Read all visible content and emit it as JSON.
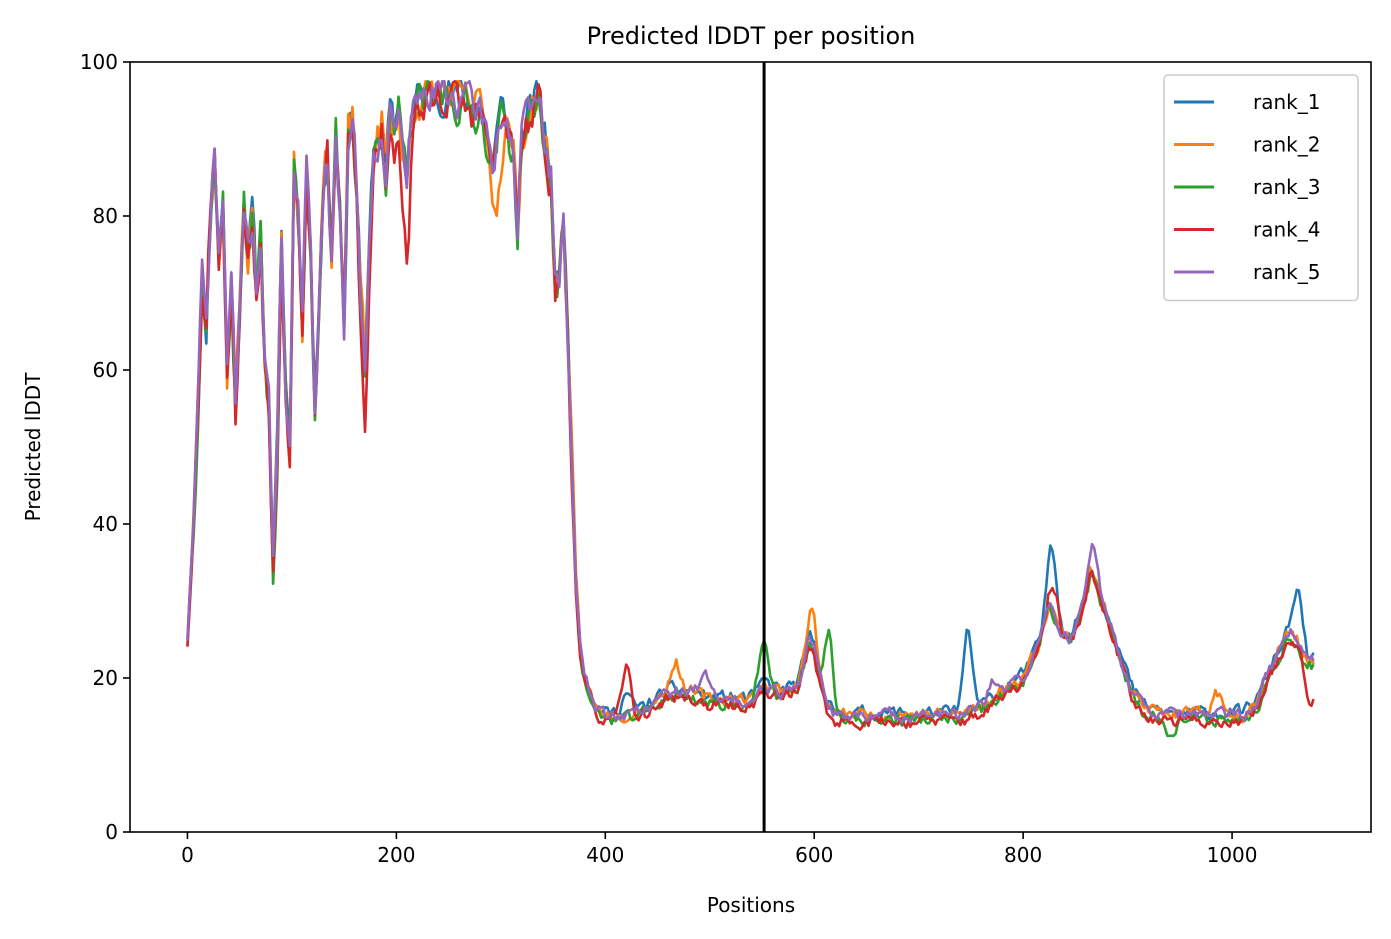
{
  "chart_data": {
    "type": "line",
    "title": "Predicted lDDT per position",
    "xlabel": "Positions",
    "ylabel": "Predicted lDDT",
    "xlim": [
      -55,
      1133
    ],
    "ylim": [
      0,
      100
    ],
    "xticks": [
      0,
      200,
      400,
      600,
      800,
      1000
    ],
    "yticks": [
      0,
      20,
      40,
      60,
      80,
      100
    ],
    "grid": false,
    "legend_position": "top-right",
    "vertical_line_x": 552,
    "vertical_line_color": "#000000",
    "base_profile": [
      [
        0,
        25
      ],
      [
        5,
        38
      ],
      [
        10,
        55
      ],
      [
        14,
        72
      ],
      [
        18,
        65
      ],
      [
        22,
        80
      ],
      [
        26,
        88
      ],
      [
        30,
        75
      ],
      [
        34,
        82
      ],
      [
        38,
        60
      ],
      [
        42,
        72
      ],
      [
        46,
        55
      ],
      [
        50,
        68
      ],
      [
        54,
        82
      ],
      [
        58,
        74
      ],
      [
        62,
        80
      ],
      [
        66,
        70
      ],
      [
        70,
        78
      ],
      [
        74,
        62
      ],
      [
        78,
        55
      ],
      [
        82,
        36
      ],
      [
        86,
        50
      ],
      [
        90,
        78
      ],
      [
        94,
        58
      ],
      [
        98,
        50
      ],
      [
        102,
        86
      ],
      [
        106,
        80
      ],
      [
        110,
        66
      ],
      [
        114,
        86
      ],
      [
        118,
        76
      ],
      [
        122,
        55
      ],
      [
        126,
        70
      ],
      [
        130,
        84
      ],
      [
        134,
        88
      ],
      [
        138,
        74
      ],
      [
        142,
        90
      ],
      [
        146,
        80
      ],
      [
        150,
        66
      ],
      [
        154,
        90
      ],
      [
        158,
        92
      ],
      [
        162,
        84
      ],
      [
        166,
        70
      ],
      [
        170,
        60
      ],
      [
        174,
        75
      ],
      [
        178,
        88
      ],
      [
        182,
        90
      ],
      [
        186,
        92
      ],
      [
        190,
        86
      ],
      [
        194,
        93
      ],
      [
        198,
        90
      ],
      [
        202,
        94
      ],
      [
        206,
        88
      ],
      [
        210,
        85
      ],
      [
        214,
        92
      ],
      [
        218,
        94
      ],
      [
        222,
        95
      ],
      [
        230,
        95
      ],
      [
        240,
        96
      ],
      [
        250,
        96
      ],
      [
        260,
        95
      ],
      [
        270,
        94
      ],
      [
        280,
        94
      ],
      [
        288,
        90
      ],
      [
        292,
        86
      ],
      [
        296,
        90
      ],
      [
        300,
        93
      ],
      [
        306,
        92
      ],
      [
        312,
        88
      ],
      [
        316,
        78
      ],
      [
        320,
        90
      ],
      [
        326,
        92
      ],
      [
        332,
        94
      ],
      [
        336,
        95
      ],
      [
        342,
        90
      ],
      [
        348,
        85
      ],
      [
        352,
        70
      ],
      [
        356,
        72
      ],
      [
        360,
        80
      ],
      [
        364,
        65
      ],
      [
        368,
        48
      ],
      [
        372,
        32
      ],
      [
        376,
        24
      ],
      [
        380,
        20
      ],
      [
        385,
        18
      ],
      [
        390,
        16
      ],
      [
        400,
        15
      ],
      [
        420,
        15
      ],
      [
        440,
        16
      ],
      [
        460,
        18
      ],
      [
        480,
        18
      ],
      [
        500,
        17
      ],
      [
        520,
        17
      ],
      [
        540,
        17
      ],
      [
        552,
        19
      ],
      [
        570,
        18
      ],
      [
        585,
        19
      ],
      [
        595,
        25
      ],
      [
        600,
        24
      ],
      [
        605,
        20
      ],
      [
        612,
        16
      ],
      [
        620,
        15
      ],
      [
        650,
        15
      ],
      [
        700,
        15
      ],
      [
        740,
        15
      ],
      [
        760,
        16
      ],
      [
        780,
        18
      ],
      [
        800,
        20
      ],
      [
        815,
        24
      ],
      [
        825,
        30
      ],
      [
        835,
        26
      ],
      [
        845,
        25
      ],
      [
        855,
        28
      ],
      [
        865,
        34
      ],
      [
        875,
        30
      ],
      [
        885,
        26
      ],
      [
        895,
        22
      ],
      [
        905,
        18
      ],
      [
        915,
        16
      ],
      [
        935,
        15
      ],
      [
        960,
        15
      ],
      [
        990,
        15
      ],
      [
        1010,
        15
      ],
      [
        1025,
        17
      ],
      [
        1040,
        22
      ],
      [
        1055,
        26
      ],
      [
        1065,
        24
      ],
      [
        1072,
        22
      ],
      [
        1078,
        22
      ]
    ],
    "series": [
      {
        "name": "rank_1",
        "color": "#1f77b4",
        "offset": 0.5,
        "seed": 11,
        "bumps": [
          [
            420,
            2.5
          ],
          [
            747,
            10
          ],
          [
            828,
            8
          ],
          [
            1063,
            6
          ]
        ]
      },
      {
        "name": "rank_2",
        "color": "#ff7f0e",
        "offset": 0.3,
        "seed": 23,
        "bumps": [
          [
            297,
            -8
          ],
          [
            467,
            4
          ],
          [
            598,
            4
          ],
          [
            985,
            3
          ]
        ]
      },
      {
        "name": "rank_3",
        "color": "#2ca02c",
        "offset": -0.4,
        "seed": 37,
        "bumps": [
          [
            84,
            -3
          ],
          [
            551,
            6
          ],
          [
            614,
            10
          ],
          [
            940,
            -2
          ]
        ]
      },
      {
        "name": "rank_4",
        "color": "#d62728",
        "offset": -0.6,
        "seed": 53,
        "bumps": [
          [
            24,
            3
          ],
          [
            170,
            -8
          ],
          [
            210,
            -9
          ],
          [
            420,
            7
          ],
          [
            830,
            4
          ],
          [
            1075,
            -4
          ]
        ]
      },
      {
        "name": "rank_5",
        "color": "#9467bd",
        "offset": 0.2,
        "seed": 71,
        "bumps": [
          [
            495,
            4
          ],
          [
            770,
            2
          ],
          [
            868,
            4
          ]
        ]
      }
    ]
  }
}
